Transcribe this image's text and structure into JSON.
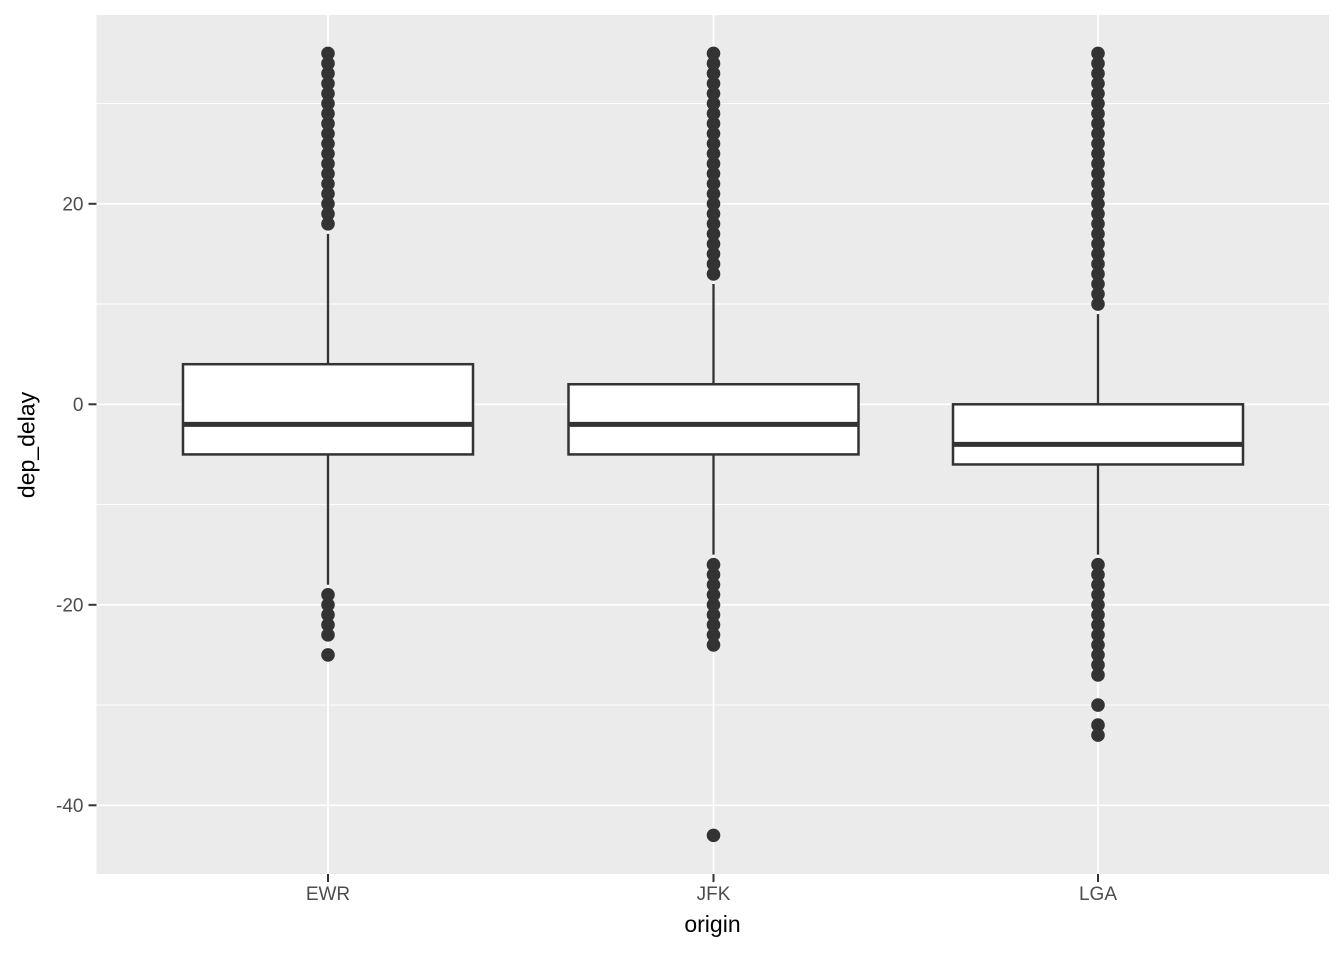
{
  "colors": {
    "panel_background": "#EBEBEB",
    "grid_major": "#FFFFFF",
    "grid_minor": "#FFFFFF",
    "box_outline": "#333333",
    "box_fill": "#FFFFFF",
    "outlier_dot": "#333333",
    "tick_mark": "#333333",
    "tick_label": "#4D4D4D",
    "axis_title": "#000000"
  },
  "chart_data": {
    "type": "boxplot",
    "title": "",
    "xlabel": "origin",
    "ylabel": "dep_delay",
    "categories": [
      "EWR",
      "JFK",
      "LGA"
    ],
    "y_axis": {
      "major_ticks": [
        20,
        0,
        -20,
        -40
      ],
      "tick_labels": [
        "20",
        "0",
        "-20",
        "-40"
      ],
      "minor_ticks": [
        30,
        10,
        -10,
        -30
      ],
      "ylim": [
        -46.8,
        38.8
      ],
      "grid": true
    },
    "legend": "none",
    "series": [
      {
        "name": "EWR",
        "q1": -5,
        "median": -2,
        "q3": 4,
        "whisker_low": -18,
        "whisker_high": 17,
        "outliers_high": [
          18,
          19,
          20,
          21,
          22,
          23,
          24,
          25,
          26,
          27,
          28,
          29,
          30,
          31,
          32,
          33,
          34,
          35
        ],
        "outliers_low": [
          -19,
          -20,
          -21,
          -22,
          -23,
          -25
        ]
      },
      {
        "name": "JFK",
        "q1": -5,
        "median": -2,
        "q3": 2,
        "whisker_low": -15,
        "whisker_high": 12,
        "outliers_high": [
          13,
          14,
          15,
          16,
          17,
          18,
          19,
          20,
          21,
          22,
          23,
          24,
          25,
          26,
          27,
          28,
          29,
          30,
          31,
          32,
          33,
          34,
          35
        ],
        "outliers_low": [
          -16,
          -17,
          -18,
          -19,
          -20,
          -21,
          -22,
          -23,
          -24,
          -43
        ]
      },
      {
        "name": "LGA",
        "q1": -6,
        "median": -4,
        "q3": 0,
        "whisker_low": -15,
        "whisker_high": 9,
        "outliers_high": [
          10,
          11,
          12,
          13,
          14,
          15,
          16,
          17,
          18,
          19,
          20,
          21,
          22,
          23,
          24,
          25,
          26,
          27,
          28,
          29,
          30,
          31,
          32,
          33,
          34,
          35
        ],
        "outliers_low": [
          -16,
          -17,
          -18,
          -19,
          -20,
          -21,
          -22,
          -23,
          -24,
          -25,
          -26,
          -27,
          -30,
          -32,
          -33
        ]
      }
    ]
  }
}
